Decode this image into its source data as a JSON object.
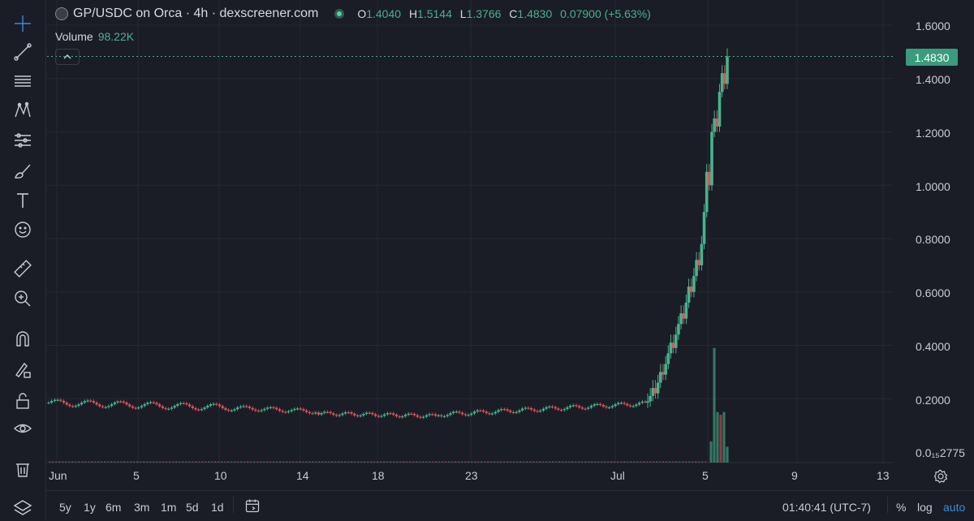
{
  "header": {
    "title": "GP/USDC on Orca · 4h · dexscreener.com",
    "ohlc": [
      {
        "k": "O",
        "v": "1.4040"
      },
      {
        "k": "H",
        "v": "1.5144"
      },
      {
        "k": "L",
        "v": "1.3766"
      },
      {
        "k": "C",
        "v": "1.4830"
      }
    ],
    "change": "0.07900 (+5.63%)"
  },
  "volume": {
    "label": "Volume",
    "value": "98.22K"
  },
  "price_axis": {
    "ticks": [
      "1.6000",
      "1.4000",
      "1.2000",
      "1.0000",
      "0.8000",
      "0.6000",
      "0.4000",
      "0.2000"
    ],
    "bottom_tick": "0.0₁₅2775",
    "current_price": "1.4830"
  },
  "time_axis": [
    "Jun",
    "5",
    "10",
    "14",
    "18",
    "23",
    "Jul",
    "5",
    "9",
    "13"
  ],
  "bottom_bar": {
    "ranges": [
      "5y",
      "1y",
      "6m",
      "3m",
      "1m",
      "5d",
      "1d"
    ],
    "clock": "01:40:41 (UTC-7)",
    "percent": "%",
    "log": "log",
    "auto": "auto"
  },
  "colors": {
    "up": "#46b48c",
    "down": "#e0525a",
    "background": "#1a1c26",
    "grid": "#262935",
    "accent": "#3b8cd8"
  },
  "tools": [
    "crosshair-icon",
    "trendline-icon",
    "fib-icon",
    "pattern-icon",
    "prediction-icon",
    "brush-icon",
    "text-icon",
    "emoji-icon",
    "ruler-icon",
    "zoom-in-icon",
    "magnet-icon",
    "lock-draw-icon",
    "unlock-icon",
    "eye-icon",
    "trash-icon",
    "layers-icon"
  ],
  "chart_data": {
    "type": "candlestick",
    "x_labels": [
      "Jun",
      "5",
      "10",
      "14",
      "18",
      "23",
      "Jul",
      "5",
      "9",
      "13"
    ],
    "ylim": [
      0.0,
      1.6
    ],
    "close_series": [
      0.18,
      0.185,
      0.19,
      0.18,
      0.175,
      0.18,
      0.18,
      0.17,
      0.175,
      0.165,
      0.17,
      0.175,
      0.17,
      0.165,
      0.17,
      0.18,
      0.195,
      0.2,
      0.185,
      0.175,
      0.17,
      0.165,
      0.16,
      0.155,
      0.16,
      0.16,
      0.155,
      0.16,
      0.165,
      0.16,
      0.155,
      0.15,
      0.145,
      0.14,
      0.14,
      0.145,
      0.14,
      0.135,
      0.14,
      0.13,
      0.125,
      0.12,
      0.135,
      0.14,
      0.14,
      0.145,
      0.15,
      0.15,
      0.145,
      0.145,
      0.15,
      0.155,
      0.155,
      0.16,
      0.165,
      0.16,
      0.165,
      0.175,
      0.18,
      0.185,
      0.18,
      0.185,
      0.19,
      0.2,
      0.22,
      0.24,
      0.27,
      0.3,
      0.34,
      0.38,
      0.44,
      0.5,
      0.58,
      0.62,
      0.68,
      0.82,
      1.0,
      1.2,
      1.25,
      1.38,
      1.42,
      1.483
    ],
    "volume_spike": {
      "value": 0.39,
      "unit": "price-axis scale"
    }
  }
}
